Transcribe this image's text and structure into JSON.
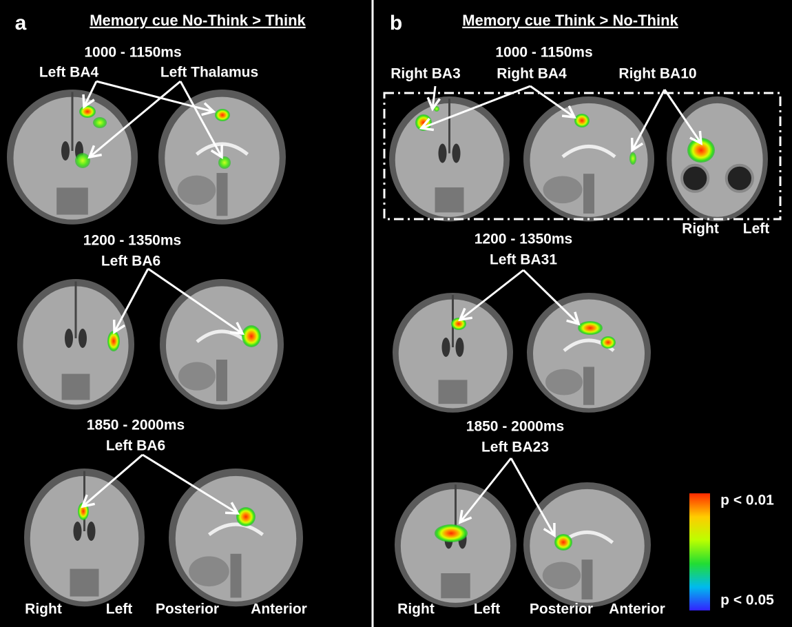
{
  "panels": [
    {
      "letter": "a",
      "title": "Memory cue No-Think > Think",
      "rows": [
        {
          "time": "1000 - 1150ms",
          "regions": [
            "Left BA4",
            "Left Thalamus"
          ]
        },
        {
          "time": "1200 - 1350ms",
          "regions": [
            "Left BA6"
          ]
        },
        {
          "time": "1850 - 2000ms",
          "regions": [
            "Left BA6"
          ]
        }
      ],
      "orientation": [
        "Right",
        "Left",
        "Posterior",
        "Anterior"
      ]
    },
    {
      "letter": "b",
      "title": "Memory cue Think > No-Think",
      "rows": [
        {
          "time": "1000 - 1150ms",
          "regions": [
            "Right BA3",
            "Right BA4",
            "Right BA10"
          ]
        },
        {
          "time": "1200 - 1350ms",
          "regions": [
            "Left BA31"
          ]
        },
        {
          "time": "1850 - 2000ms",
          "regions": [
            "Left BA23"
          ]
        }
      ],
      "orientation": [
        "Right",
        "Left",
        "Posterior",
        "Anterior"
      ],
      "inset_orientation": [
        "Right",
        "Left"
      ]
    }
  ],
  "colorbar": {
    "top": "p < 0.01",
    "bottom": "p < 0.05"
  }
}
